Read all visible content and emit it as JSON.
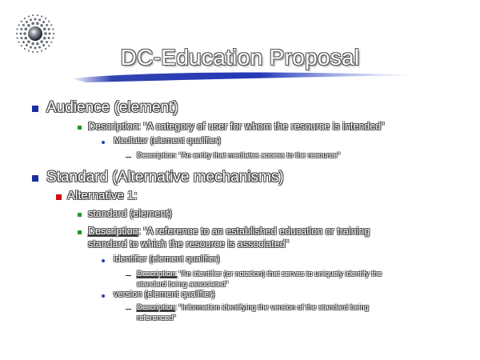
{
  "slide": {
    "title": "DC-Education Proposal",
    "colors": {
      "bullet_level1": "#1a2f9e",
      "bullet_level2": "#cc1010",
      "bullet_level3": "#1f9a2a",
      "bullet_level4": "#2a3fb0",
      "swoosh": "#1b2fa8"
    },
    "logo_icon": "dotted-globe-icon",
    "items": {
      "audience": {
        "label": "Audience (element)",
        "description": "Description: “A category of user for whom the resource is intended”",
        "mediator": {
          "label": "Mediator (element qualifier)",
          "description": "Description: “An entity that mediates access to the resource”"
        }
      },
      "standard": {
        "label": "Standard (Alternative mechanisms)",
        "alt1": {
          "label": "Alternative 1:",
          "standard_element": "standard (element)",
          "description_label": "Description",
          "description_line1": ": “A reference to an established education or training",
          "description_line2": "standard to which the resource is associated”",
          "identifier": {
            "label": "identifier (element qualifier)",
            "description_label": "Description:",
            "description_line1": " “An identifier (or notation) that serves to uniquely identify the",
            "description_line2": "standard being associated”"
          },
          "version": {
            "label": "version (element qualifier)",
            "description_label": "Description",
            "description_line1": ": “Information identifying the version of the standard being",
            "description_line2": "referenced”"
          }
        }
      }
    }
  }
}
